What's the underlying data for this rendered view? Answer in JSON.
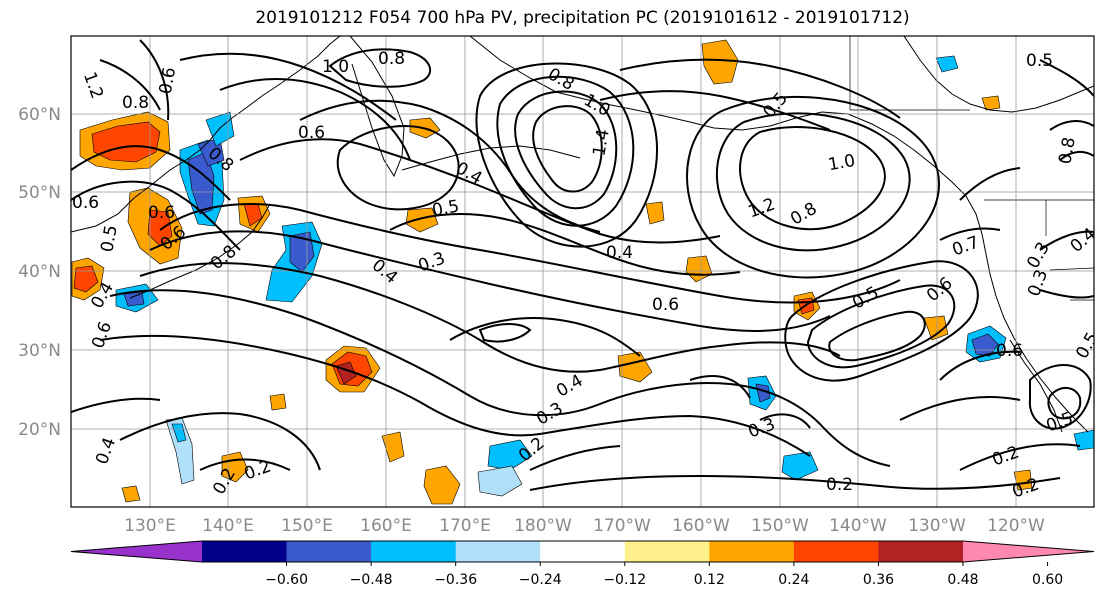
{
  "title": "2019101212 F054 700 hPa PV, precipitation PC (2019101612 - 2019101712)",
  "axes": {
    "lat_labels": [
      "60°N",
      "50°N",
      "40°N",
      "30°N",
      "20°N"
    ],
    "lon_labels": [
      "130°E",
      "140°E",
      "150°E",
      "160°E",
      "170°E",
      "180°W",
      "170°W",
      "160°W",
      "150°W",
      "140°W",
      "130°W",
      "120°W"
    ]
  },
  "colorbar": {
    "colors": [
      "#9932cc",
      "#00008b",
      "#3a5bcd",
      "#00bfff",
      "#b0e0fa",
      "#ffffff",
      "#fff08c",
      "#ffa500",
      "#ff4500",
      "#b22222",
      "#ff88b0"
    ],
    "tick_labels": [
      "−0.60",
      "−0.48",
      "−0.36",
      "−0.24",
      "−0.12",
      "0.12",
      "0.24",
      "0.36",
      "0.48",
      "0.60"
    ]
  },
  "contour_labels": [
    "1.2",
    "0.6",
    "1.0",
    "0.8",
    "0.8",
    "1.0",
    "0.5",
    "0.8",
    "0.5",
    "0.8",
    "0.6",
    "0.4",
    "1.4",
    "0.8",
    "0.6",
    "1.0",
    "0.6",
    "0.5",
    "0.6",
    "0.5",
    "0.8",
    "1.2",
    "0.8",
    "0.7",
    "0.4",
    "0.5",
    "0.4",
    "0.3",
    "0.4",
    "0.6",
    "0.4",
    "0.3",
    "0.6",
    "0.6",
    "0.5",
    "0.6",
    "0.3",
    "0.4",
    "0.4",
    "0.3",
    "0.3",
    "0.2",
    "0.2",
    "0.2",
    "0.2",
    "0.2",
    "0.5",
    "0.2"
  ]
}
